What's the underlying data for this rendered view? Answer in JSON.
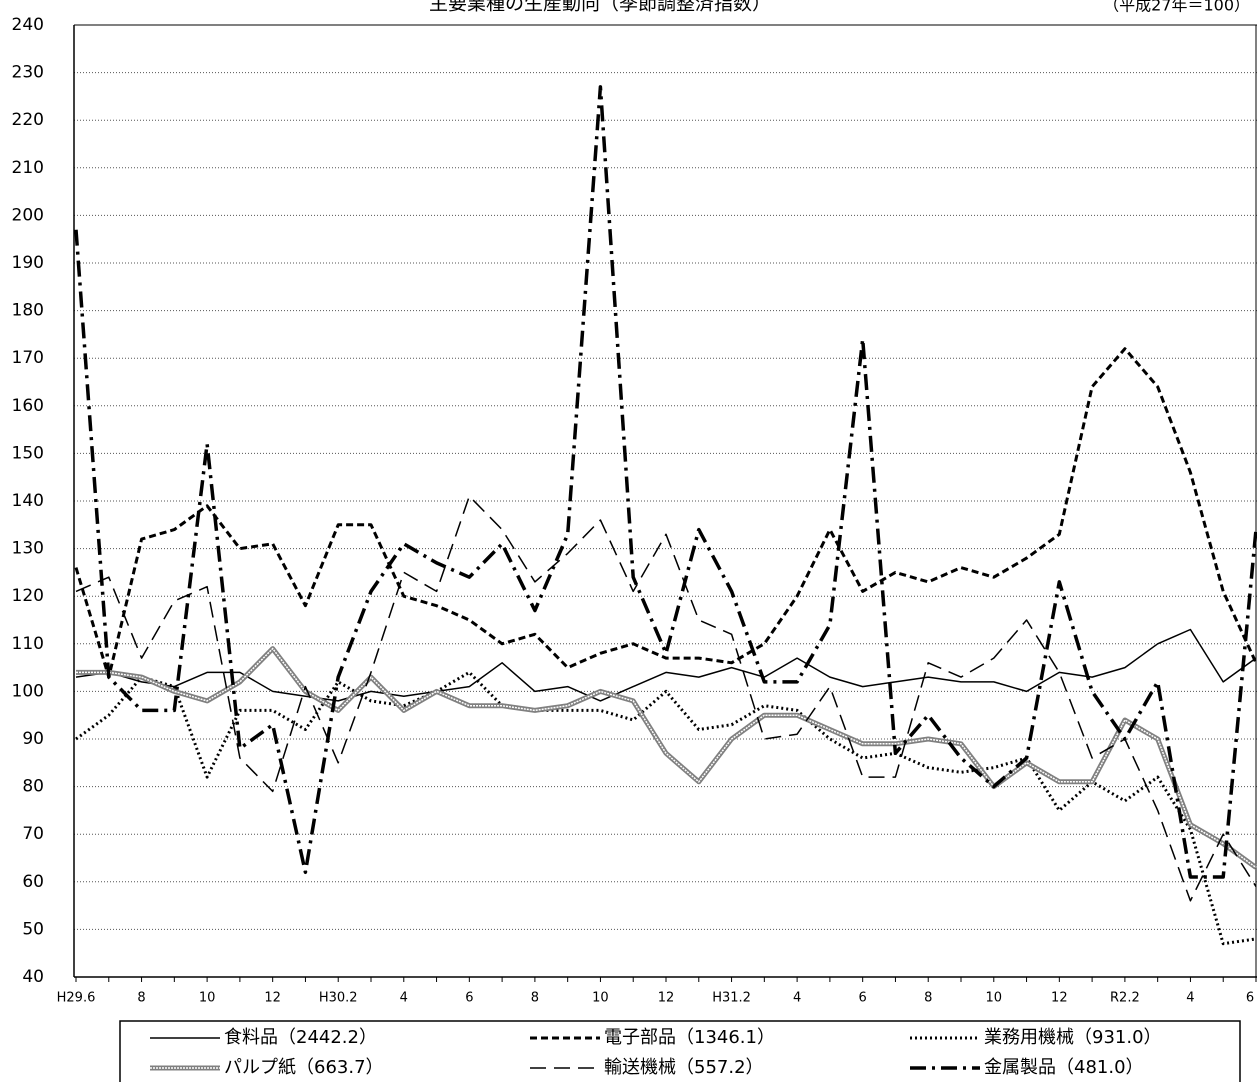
{
  "chart_data": {
    "type": "line",
    "title": "主要業種の生産動向（季節調整済指数）",
    "subtitle": "（平成27年＝100）",
    "categories": [
      "H29.6",
      null,
      "8",
      null,
      "10",
      null,
      "12",
      null,
      "H30.2",
      null,
      "4",
      null,
      "6",
      null,
      "8",
      null,
      "10",
      null,
      "12",
      null,
      "H31.2",
      null,
      "4",
      null,
      "6",
      null,
      "8",
      null,
      "10",
      null,
      "12",
      null,
      "R2.2",
      null,
      "4",
      null,
      "6"
    ],
    "ylim": [
      40,
      240
    ],
    "yticks": [
      40,
      50,
      60,
      70,
      80,
      90,
      100,
      110,
      120,
      130,
      140,
      150,
      160,
      170,
      180,
      190,
      200,
      210,
      220,
      230,
      240
    ],
    "grid": true,
    "series": [
      {
        "name": "食料品（2442.2）",
        "color": "#000000",
        "line_style": "solid",
        "values": [
          103,
          104,
          102,
          101,
          104,
          104,
          100,
          99,
          98,
          100,
          99,
          100,
          101,
          106,
          100,
          101,
          98,
          101,
          104,
          103,
          105,
          103,
          107,
          103,
          101,
          102,
          103,
          102,
          102,
          100,
          104,
          103,
          105,
          110,
          113,
          102,
          107
        ]
      },
      {
        "name": "電子部品（1346.1）",
        "color": "#000000",
        "line_style": "dashed",
        "values": [
          126,
          103,
          132,
          134,
          139,
          130,
          131,
          118,
          135,
          135,
          120,
          118,
          115,
          110,
          112,
          105,
          108,
          110,
          107,
          107,
          106,
          110,
          120,
          134,
          121,
          125,
          123,
          126,
          124,
          128,
          133,
          164,
          172,
          164,
          146,
          121,
          106
        ]
      },
      {
        "name": "業務用機械（931.0）",
        "color": "#000000",
        "line_style": "dotted",
        "values": [
          90,
          95,
          103,
          101,
          82,
          96,
          96,
          92,
          102,
          98,
          97,
          100,
          104,
          97,
          96,
          96,
          96,
          94,
          100,
          92,
          93,
          97,
          96,
          90,
          86,
          87,
          84,
          83,
          84,
          86,
          75,
          81,
          77,
          82,
          71,
          47,
          48
        ]
      },
      {
        "name": "パルプ紙（663.7）",
        "color": "#808080",
        "line_style": "textured",
        "values": [
          104,
          104,
          103,
          100,
          98,
          102,
          109,
          100,
          96,
          103,
          96,
          100,
          97,
          97,
          96,
          97,
          100,
          98,
          87,
          81,
          90,
          95,
          95,
          92,
          89,
          89,
          90,
          89,
          80,
          85,
          81,
          81,
          94,
          90,
          72,
          68,
          63
        ]
      },
      {
        "name": "輸送機械（557.2）",
        "color": "#000000",
        "line_style": "longdash",
        "values": [
          121,
          124,
          107,
          119,
          122,
          86,
          79,
          101,
          85,
          104,
          125,
          121,
          141,
          134,
          123,
          129,
          136,
          121,
          133,
          115,
          112,
          90,
          91,
          101,
          82,
          82,
          106,
          103,
          107,
          115,
          104,
          86,
          90,
          75,
          56,
          70,
          59
        ]
      },
      {
        "name": "金属製品（481.0）",
        "color": "#000000",
        "line_style": "dashdot",
        "values": [
          197,
          103,
          96,
          96,
          152,
          88,
          93,
          62,
          103,
          121,
          131,
          127,
          124,
          131,
          117,
          133,
          227,
          124,
          108,
          134,
          121,
          102,
          102,
          114,
          174,
          87,
          95,
          86,
          80,
          86,
          123,
          100,
          90,
          102,
          61,
          61,
          134
        ]
      }
    ]
  }
}
